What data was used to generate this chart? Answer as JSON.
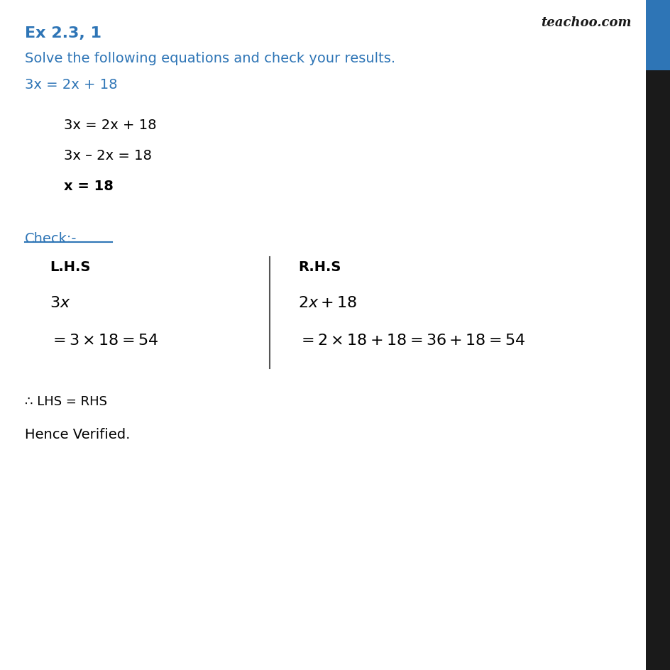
{
  "title": "Ex 2.3, 1",
  "title_color": "#2e75b6",
  "subtitle": "Solve the following equations and check your results.",
  "subtitle_color": "#2e75b6",
  "equation_header": "3x = 2x + 18",
  "equation_header_color": "#2e75b6",
  "steps": [
    {
      "text": "3x = 2x + 18",
      "bold": false
    },
    {
      "text": "3x – 2x = 18",
      "bold": false
    },
    {
      "text": "x = 18",
      "bold": true
    }
  ],
  "check_label": "Check:-",
  "check_color": "#2e75b6",
  "lhs_header": "L.H.S",
  "rhs_header": "R.H.S",
  "lhs_expr": "3x",
  "lhs_calc": "= 3 × 18 = 54",
  "rhs_expr": "2x + 18",
  "rhs_calc": "= 2 × 18 + 18 = 36 + 18 = 54",
  "conclusion1": "∴ LHS = RHS",
  "conclusion2": "Hence Verified.",
  "bg_color": "#ffffff",
  "text_color": "#000000",
  "sidebar_blue": "#2e75b6",
  "sidebar_black": "#1a1a1a",
  "watermark": "teachoo.com",
  "watermark_color": "#1a1a1a",
  "divider_color": "#555555",
  "check_underline_color": "#2e75b6"
}
